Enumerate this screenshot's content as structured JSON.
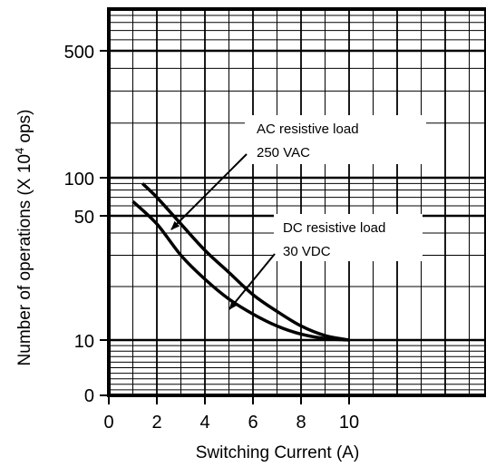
{
  "chart_data": {
    "type": "line",
    "title": "",
    "xlabel": "Switching Current (A)",
    "ylabel_main": "Number of operations (X 10",
    "ylabel_sup": "4",
    "ylabel_tail": " ops)",
    "xlim": [
      0,
      16
    ],
    "x_ticks": [
      "0",
      "2",
      "4",
      "6",
      "8",
      "10"
    ],
    "y_ticks": [
      "500",
      "100",
      "50",
      "10",
      "0"
    ],
    "grid": true,
    "series": [
      {
        "name": "AC resistive load 250 VAC",
        "points": [
          [
            1.4,
            90
          ],
          [
            2,
            70
          ],
          [
            3,
            45
          ],
          [
            4,
            32
          ],
          [
            5,
            24
          ],
          [
            6,
            18
          ],
          [
            7,
            14.5
          ],
          [
            8,
            12
          ],
          [
            9,
            10.6
          ],
          [
            10,
            10
          ]
        ]
      },
      {
        "name": "DC resistive load 30 VDC",
        "points": [
          [
            1.0,
            65
          ],
          [
            2,
            45
          ],
          [
            3,
            30
          ],
          [
            4,
            22
          ],
          [
            5,
            17
          ],
          [
            6,
            14
          ],
          [
            7,
            12
          ],
          [
            8,
            10.8
          ],
          [
            9,
            10.2
          ],
          [
            10,
            10
          ]
        ]
      }
    ],
    "annotations": [
      {
        "line1": "AC resistive load",
        "line2": "250 VAC"
      },
      {
        "line1": "DC resistive load",
        "line2": "30 VDC"
      }
    ]
  }
}
